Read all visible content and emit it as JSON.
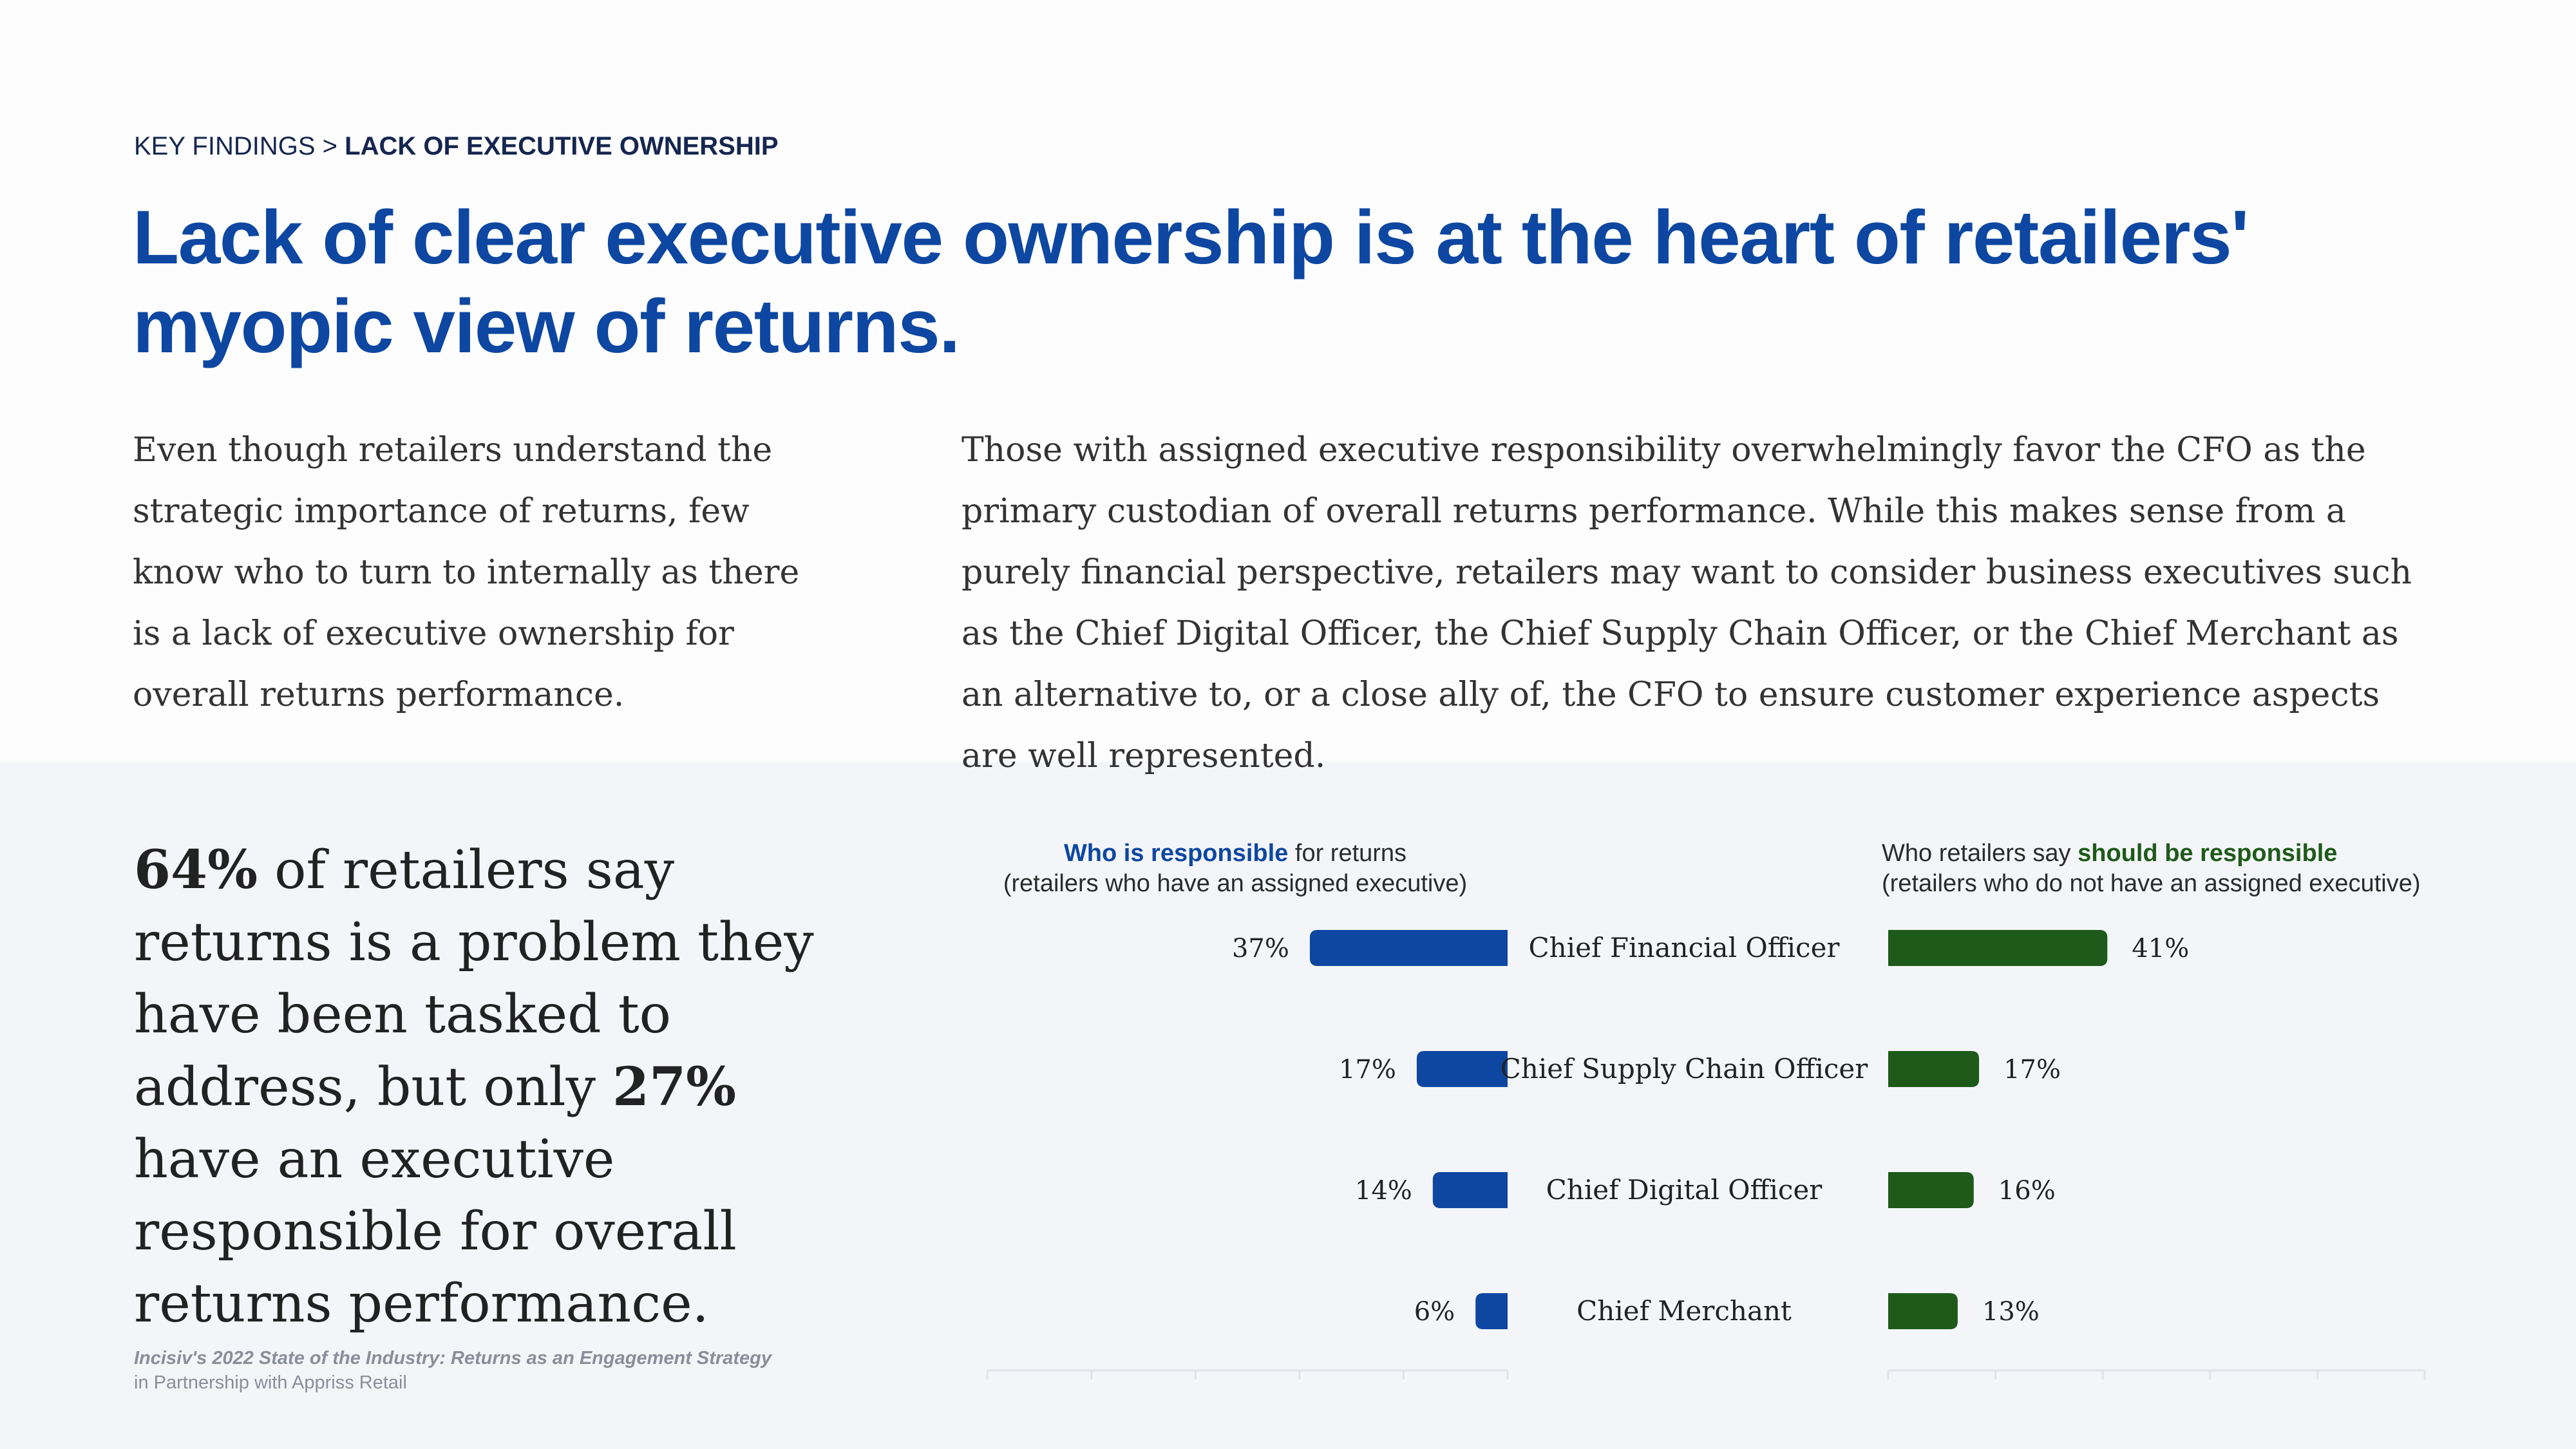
{
  "breadcrumb": {
    "section": "KEY FINDINGS",
    "separator": ">",
    "current": "LACK OF EXECUTIVE OWNERSHIP"
  },
  "title": "Lack of clear executive ownership is at the heart of retailers' myopic view of returns.",
  "intro_left": "Even though retailers understand the strategic importance of returns, few know who to turn to internally as there is a lack of executive ownership for overall returns performance.",
  "intro_right": "Those with assigned executive responsibility overwhelmingly favor the CFO as the primary custodian of overall returns performance. While this makes sense from a purely financial perspective, retailers may want to consider business executives such as the Chief Digital Officer, the Chief Supply Chain Officer, or the Chief Merchant as an alternative to, or a close ally of, the CFO to ensure customer experience aspects are well represented.",
  "stat": {
    "pct1": "64%",
    "text1": " of retailers say returns is a problem they have been tasked to address, but only ",
    "pct2": "27%",
    "text2": " have an executive responsible for overall returns performance."
  },
  "source": {
    "title": "Incisiv's 2022 State of the Industry: Returns as an Engagement Strategy",
    "subtitle": "in Partnership with Appriss Retail"
  },
  "colors": {
    "title": "#0d47a1",
    "blue_bar": "#0d47a1",
    "green_bar": "#1e5a1a",
    "bottom_bg": "#f4f5f9"
  },
  "chart_data": {
    "type": "bar",
    "orientation": "horizontal",
    "categories": [
      "Chief Financial Officer",
      "Chief Supply Chain Officer",
      "Chief Digital Officer",
      "Chief Merchant"
    ],
    "series": [
      {
        "name": "Who is responsible for returns",
        "header_bold": "Who is responsible",
        "header_rest": " for returns",
        "subtitle": "(retailers who have an assigned executive)",
        "values": [
          37,
          17,
          14,
          6
        ],
        "labels": [
          "37%",
          "17%",
          "14%",
          "6%"
        ],
        "color": "#0d47a1"
      },
      {
        "name": "Who retailers say should be responsible",
        "header_pre": "Who retailers say ",
        "header_bold": "should be responsible",
        "subtitle": "(retailers who do not have an assigned executive)",
        "values": [
          41,
          17,
          16,
          13
        ],
        "labels": [
          "41%",
          "17%",
          "16%",
          "13%"
        ],
        "color": "#1e5a1a"
      }
    ],
    "xlim": [
      0,
      100
    ],
    "grid": false
  }
}
